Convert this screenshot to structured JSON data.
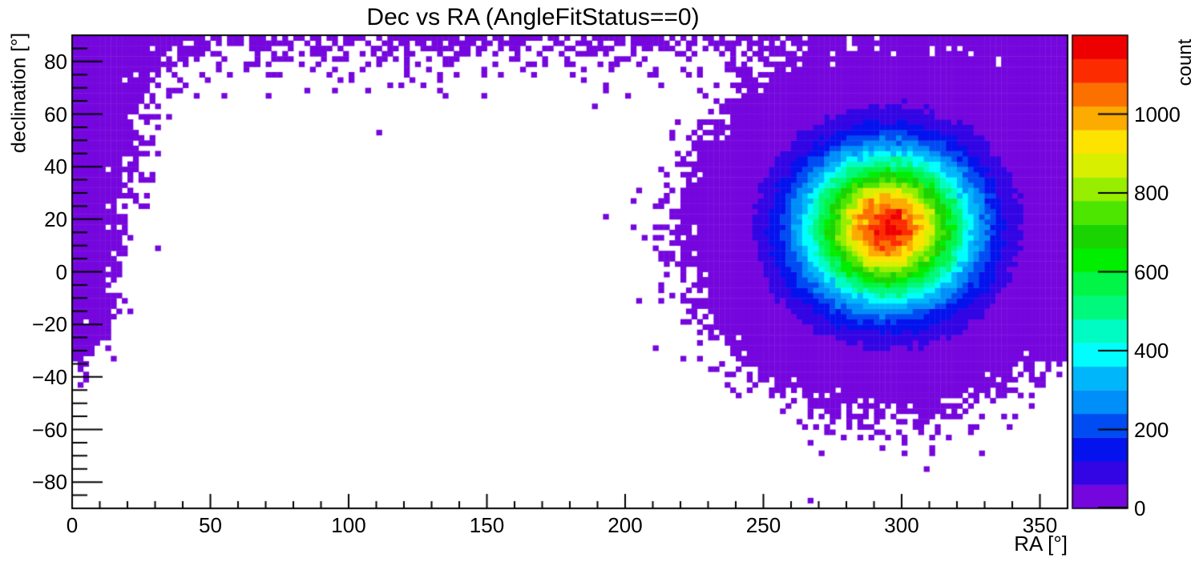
{
  "title": "Dec vs RA (AngleFitStatus==0)",
  "x_axis": {
    "label": "RA [°]",
    "min": 0,
    "max": 360,
    "major_ticks": [
      0,
      50,
      100,
      150,
      200,
      250,
      300,
      350
    ],
    "minor_step": 10
  },
  "y_axis": {
    "label": "declination [°]",
    "min": -90,
    "max": 90,
    "major_ticks": [
      -80,
      -60,
      -40,
      -20,
      0,
      20,
      40,
      60,
      80
    ],
    "minor_step": 5
  },
  "z_axis": {
    "label": "count",
    "min": 0,
    "max": 1200,
    "major_ticks": [
      0,
      200,
      400,
      600,
      800,
      1000
    ]
  },
  "colors": {
    "background": "#ffffff",
    "frame": "#000000",
    "text": "#000000",
    "sparse_bin": "#7506dd"
  },
  "chart_data": {
    "type": "heatmap",
    "title": "Dec vs RA (AngleFitStatus==0)",
    "xlabel": "RA [°]",
    "ylabel": "declination [°]",
    "zlabel": "count",
    "x_range": [
      0,
      360
    ],
    "y_range": [
      -90,
      90
    ],
    "bins_x": 180,
    "bins_y": 90,
    "z_range": [
      0,
      1200
    ],
    "contour_levels": 20,
    "palette": [
      "#7506dd",
      "#3305e4",
      "#0413ed",
      "#004cf2",
      "#008ef8",
      "#00b6fb",
      "#00feff",
      "#00fcc3",
      "#00f87c",
      "#00f546",
      "#00ee00",
      "#19d400",
      "#4ce600",
      "#97ee00",
      "#d9ef00",
      "#fde300",
      "#fcab00",
      "#fc7000",
      "#fd2c00",
      "#ef0000"
    ],
    "peak_count": 1150,
    "components": [
      {
        "kind": "gaussian2d",
        "amplitude": 1150,
        "ra": 295,
        "dec": 17,
        "sigma_ra": 20,
        "sigma_dec": 19
      },
      {
        "kind": "meridian_band",
        "amplitude": 10,
        "ra": 0,
        "sigma_ra_base": 6.5,
        "sigma_ra_dec_slope": 0.09,
        "dec_taper_start": -18,
        "dec_taper_sigma": 8
      },
      {
        "kind": "polar_cap",
        "amplitude": 1.5,
        "dec_scale": 6,
        "ra": 0,
        "ra_boost": 2,
        "ra_boost_sigma": 25
      }
    ],
    "seed": 20240613
  }
}
